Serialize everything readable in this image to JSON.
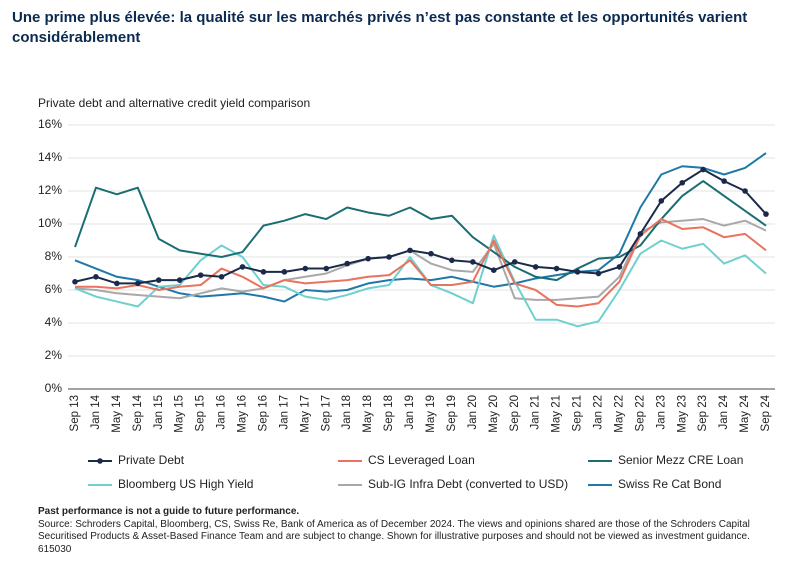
{
  "chart_data": {
    "type": "line",
    "title": "Une prime plus élevée: la qualité sur les marchés privés n’est pas constante et les opportunités varient considérablement",
    "subtitle": "Private debt and alternative credit yield comparison",
    "categories": [
      "Sep 13",
      "Jan 14",
      "May 14",
      "Sep 14",
      "Jan 15",
      "May 15",
      "Sep 15",
      "Jan 16",
      "May 16",
      "Sep 16",
      "Jan 17",
      "May 17",
      "Sep 17",
      "Jan 18",
      "May 18",
      "Sep 18",
      "Jan 19",
      "May 19",
      "Sep 19",
      "Jan 20",
      "May 20",
      "Sep 20",
      "Jan 21",
      "May 21",
      "Sep 21",
      "Jan 22",
      "May 22",
      "Sep 22",
      "Jan 23",
      "May 23",
      "Sep 23",
      "Jan 24",
      "May 24",
      "Sep 24"
    ],
    "series": [
      {
        "name": "Private Debt",
        "color": "#1b2a4a",
        "markers": true,
        "values": [
          6.5,
          6.8,
          6.4,
          6.4,
          6.6,
          6.6,
          6.9,
          6.8,
          7.4,
          7.1,
          7.1,
          7.3,
          7.3,
          7.6,
          7.9,
          8.0,
          8.4,
          8.2,
          7.8,
          7.7,
          7.2,
          7.7,
          7.4,
          7.3,
          7.1,
          7.0,
          7.4,
          9.4,
          11.4,
          12.5,
          13.3,
          12.6,
          12.0,
          10.6
        ]
      },
      {
        "name": "CS Leveraged Loan",
        "color": "#e8735f",
        "markers": false,
        "values": [
          6.2,
          6.2,
          6.1,
          6.3,
          6.0,
          6.2,
          6.3,
          7.3,
          6.8,
          6.1,
          6.6,
          6.4,
          6.5,
          6.6,
          6.8,
          6.9,
          7.8,
          6.3,
          6.3,
          6.5,
          9.0,
          6.4,
          6.0,
          5.1,
          5.0,
          5.2,
          6.5,
          9.3,
          10.3,
          9.7,
          9.8,
          9.2,
          9.4,
          8.4
        ]
      },
      {
        "name": "Senior Mezz CRE Loan",
        "color": "#1a6e73",
        "markers": false,
        "values": [
          8.6,
          12.2,
          11.8,
          12.2,
          9.1,
          8.4,
          8.2,
          8.0,
          8.3,
          9.9,
          10.2,
          10.6,
          10.3,
          11.0,
          10.7,
          10.5,
          11.0,
          10.3,
          10.5,
          9.2,
          8.3,
          7.4,
          6.8,
          6.6,
          7.3,
          7.9,
          8.0,
          8.7,
          10.3,
          11.7,
          12.6,
          11.7,
          10.8,
          9.9
        ]
      },
      {
        "name": "Bloomberg US High Yield",
        "color": "#6fd0cf",
        "markers": false,
        "values": [
          6.1,
          5.6,
          5.3,
          5.0,
          6.2,
          6.3,
          7.8,
          8.7,
          8.0,
          6.3,
          6.2,
          5.6,
          5.4,
          5.7,
          6.1,
          6.3,
          8.0,
          6.3,
          5.8,
          5.2,
          9.3,
          6.5,
          4.2,
          4.2,
          3.8,
          4.1,
          6.0,
          8.2,
          9.0,
          8.5,
          8.8,
          7.6,
          8.1,
          7.0
        ]
      },
      {
        "name": "Sub-IG Infra Debt (converted to USD)",
        "color": "#a8a8a8",
        "markers": false,
        "values": [
          6.1,
          6.0,
          5.8,
          5.7,
          5.6,
          5.5,
          5.8,
          6.1,
          5.9,
          6.1,
          6.6,
          6.8,
          7.0,
          7.5,
          7.9,
          8.0,
          8.4,
          7.6,
          7.2,
          7.1,
          8.8,
          5.5,
          5.4,
          5.4,
          5.5,
          5.6,
          6.8,
          9.5,
          10.1,
          10.2,
          10.3,
          9.9,
          10.2,
          9.6
        ]
      },
      {
        "name": "Swiss Re Cat Bond",
        "color": "#1f78a8",
        "markers": false,
        "values": [
          7.8,
          7.3,
          6.8,
          6.6,
          6.2,
          5.8,
          5.6,
          5.7,
          5.8,
          5.6,
          5.3,
          6.0,
          5.9,
          6.0,
          6.4,
          6.6,
          6.7,
          6.6,
          6.8,
          6.5,
          6.2,
          6.4,
          6.7,
          6.9,
          7.1,
          7.2,
          8.2,
          11.0,
          13.0,
          13.5,
          13.4,
          13.0,
          13.4,
          14.3
        ]
      }
    ],
    "ylim": [
      0,
      16
    ],
    "yticks": [
      {
        "value": 0,
        "label": "0%"
      },
      {
        "value": 2,
        "label": "2%"
      },
      {
        "value": 4,
        "label": "4%"
      },
      {
        "value": 6,
        "label": "6%"
      },
      {
        "value": 8,
        "label": "8%"
      },
      {
        "value": 10,
        "label": "10%"
      },
      {
        "value": 12,
        "label": "12%"
      },
      {
        "value": 14,
        "label": "14%"
      },
      {
        "value": 16,
        "label": "16%"
      }
    ],
    "grid": true,
    "footnote": "Past performance is not a guide to future performance.",
    "source": "Source: Schroders Capital, Bloomberg, CS, Swiss Re, Bank of America as of December 2024. The views and opinions shared are those of the Schroders Capital Securitised Products & Asset-Based Finance Team and are subject to change. Shown for illustrative purposes and should not be viewed as investment guidance. 615030"
  }
}
